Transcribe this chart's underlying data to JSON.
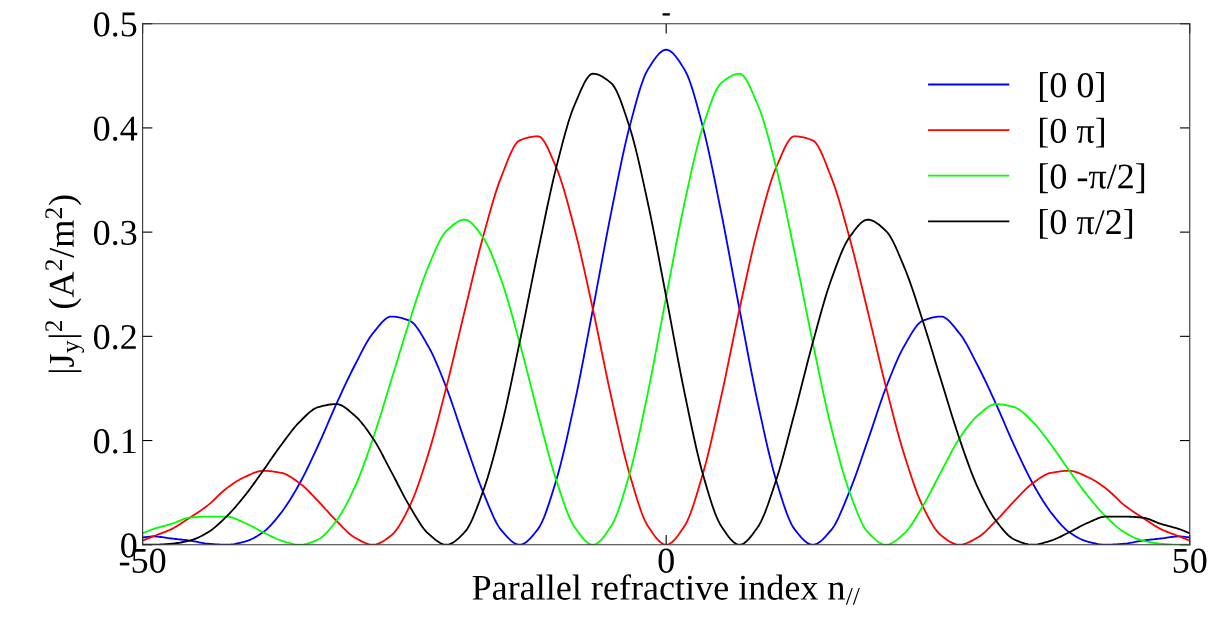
{
  "chart_data": {
    "type": "line",
    "title": "-",
    "xlabel": "Parallel refractive index n$_{//}$",
    "ylabel": "|J$_{y}$|$^{2}$ (A$^{2}$/m$^{2}$)",
    "x": [
      -50,
      -49,
      -47.25,
      -45.5,
      -43.75,
      -42,
      -40.25,
      -38.5,
      -36.75,
      -35,
      -33.25,
      -31.5,
      -29.75,
      -28,
      -26.25,
      -24.5,
      -22.75,
      -21,
      -19.25,
      -17.5,
      -15.75,
      -14,
      -12.25,
      -10.5,
      -8.75,
      -7,
      -5.25,
      -3.5,
      -1.75,
      0,
      1.75,
      3.5,
      5.25,
      7,
      8.75,
      10.5,
      12.25,
      14,
      15.75,
      17.5,
      19.25,
      21,
      22.75,
      24.5,
      26.25,
      28,
      29.75,
      31.5,
      33.25,
      35,
      36.75,
      38.5,
      40.25,
      42,
      43.75,
      45.5,
      47.25,
      49,
      50
    ],
    "series": [
      {
        "name": "[0 0]",
        "color": "#0000ff",
        "values": [
          0.007,
          0.008,
          0.006,
          0.004,
          0.001,
          0,
          0.003,
          0.012,
          0.031,
          0.059,
          0.095,
          0.135,
          0.172,
          0.203,
          0.219,
          0.215,
          0.191,
          0.151,
          0.1,
          0.051,
          0.014,
          0,
          0.015,
          0.062,
          0.136,
          0.226,
          0.319,
          0.401,
          0.456,
          0.475,
          0.456,
          0.401,
          0.319,
          0.226,
          0.136,
          0.062,
          0.015,
          0,
          0.014,
          0.051,
          0.1,
          0.151,
          0.191,
          0.215,
          0.219,
          0.203,
          0.172,
          0.135,
          0.095,
          0.059,
          0.031,
          0.012,
          0.003,
          0,
          0.001,
          0.004,
          0.006,
          0.008,
          0.007
        ]
      },
      {
        "name": "[0 π]",
        "color": "#ff0000",
        "values": [
          0.004,
          0.008,
          0.015,
          0.026,
          0.038,
          0.054,
          0.065,
          0.071,
          0.069,
          0.059,
          0.042,
          0.023,
          0.007,
          0,
          0.009,
          0.037,
          0.086,
          0.151,
          0.224,
          0.295,
          0.353,
          0.388,
          0.392,
          0.362,
          0.303,
          0.226,
          0.142,
          0.068,
          0.018,
          0,
          0.018,
          0.068,
          0.142,
          0.226,
          0.303,
          0.362,
          0.392,
          0.388,
          0.353,
          0.295,
          0.224,
          0.151,
          0.086,
          0.037,
          0.009,
          0,
          0.007,
          0.023,
          0.042,
          0.059,
          0.069,
          0.071,
          0.065,
          0.054,
          0.038,
          0.026,
          0.015,
          0.008,
          0.004
        ]
      },
      {
        "name": "[0 -π/2]",
        "color": "#00ff00",
        "values": [
          0.011,
          0.015,
          0.02,
          0.026,
          0.027,
          0.027,
          0.021,
          0.012,
          0.004,
          0,
          0.005,
          0.023,
          0.055,
          0.102,
          0.158,
          0.215,
          0.266,
          0.301,
          0.312,
          0.295,
          0.254,
          0.194,
          0.126,
          0.062,
          0.017,
          0,
          0.018,
          0.068,
          0.146,
          0.238,
          0.328,
          0.401,
          0.443,
          0.452,
          0.422,
          0.362,
          0.281,
          0.194,
          0.113,
          0.051,
          0.012,
          0,
          0.011,
          0.037,
          0.07,
          0.102,
          0.124,
          0.135,
          0.132,
          0.118,
          0.096,
          0.071,
          0.047,
          0.027,
          0.012,
          0.004,
          0.001,
          0,
          0
        ]
      },
      {
        "name": "[0 π/2]",
        "color": "#000000",
        "values": [
          0,
          0,
          0.001,
          0.004,
          0.012,
          0.027,
          0.047,
          0.071,
          0.096,
          0.118,
          0.132,
          0.135,
          0.124,
          0.102,
          0.07,
          0.037,
          0.011,
          0,
          0.012,
          0.051,
          0.113,
          0.194,
          0.281,
          0.362,
          0.422,
          0.452,
          0.443,
          0.401,
          0.328,
          0.238,
          0.146,
          0.068,
          0.018,
          0,
          0.017,
          0.062,
          0.126,
          0.194,
          0.254,
          0.295,
          0.312,
          0.301,
          0.266,
          0.215,
          0.158,
          0.102,
          0.055,
          0.023,
          0.005,
          0,
          0.004,
          0.012,
          0.021,
          0.027,
          0.027,
          0.026,
          0.02,
          0.015,
          0.011
        ]
      }
    ],
    "xlim": [
      -50,
      50
    ],
    "xticks": [
      -50,
      0,
      50
    ],
    "ylim": [
      0,
      0.5
    ],
    "yticks": [
      0,
      0.1,
      0.2,
      0.3,
      0.4,
      0.5
    ],
    "grid": false,
    "legend": "top right",
    "marker": "none",
    "line_style": "solid"
  }
}
